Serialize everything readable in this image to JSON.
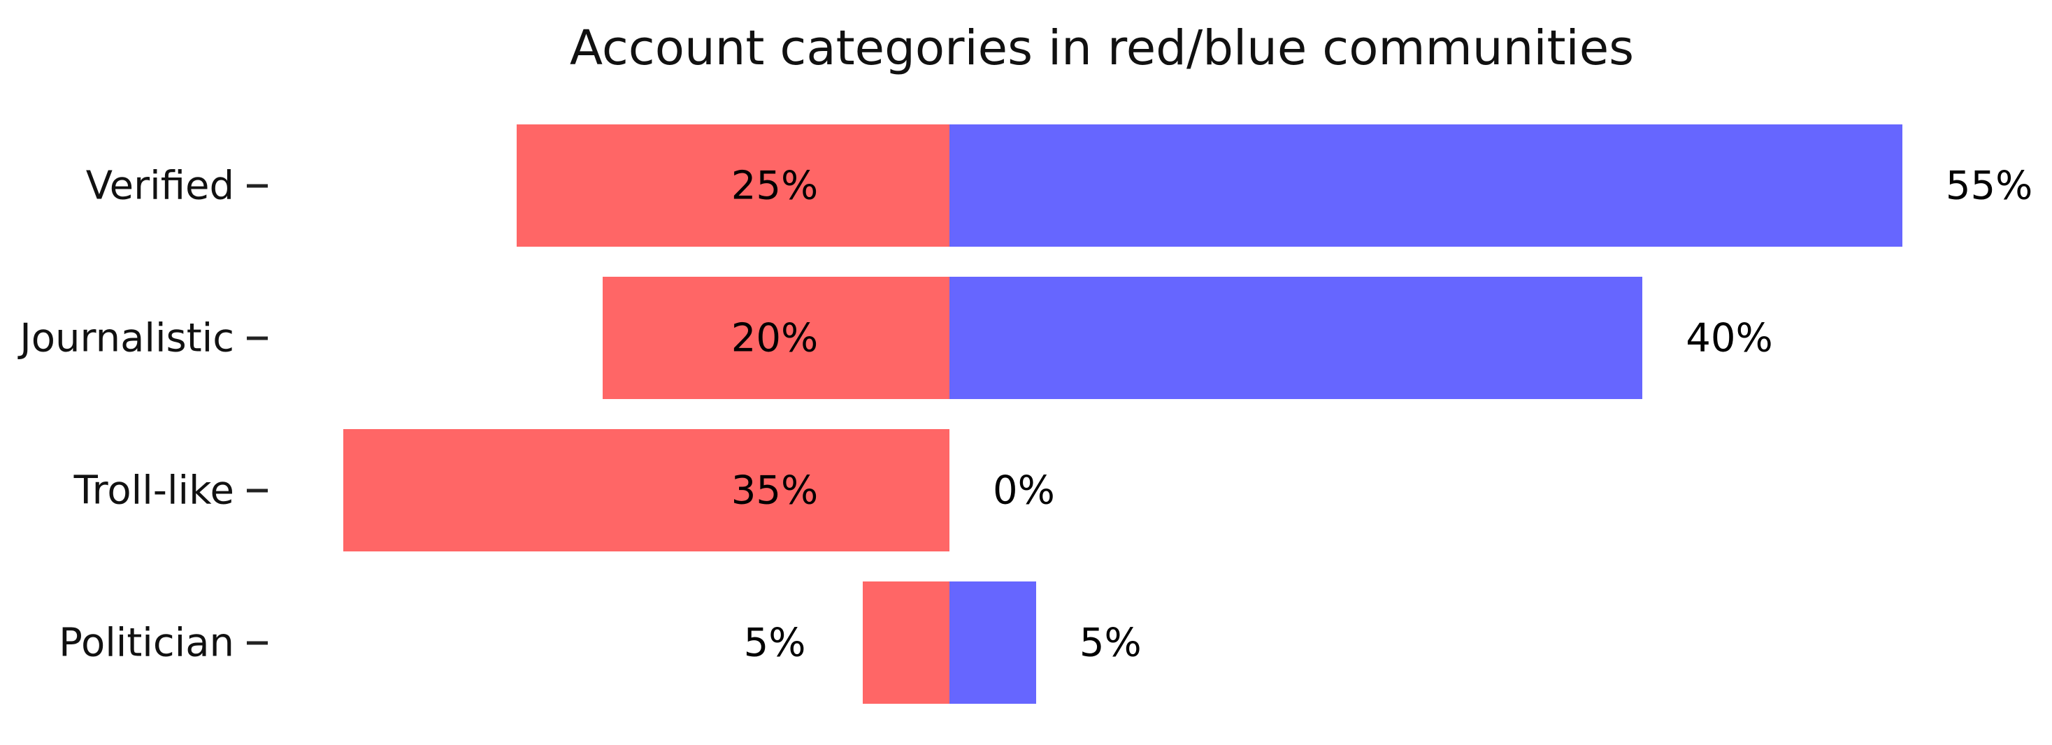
{
  "chart_data": {
    "type": "bar",
    "variant": "diverging-horizontal",
    "title": "Account categories in red/blue communities",
    "categories": [
      "Verified",
      "Journalistic",
      "Troll-like",
      "Politician"
    ],
    "series": [
      {
        "name": "red community",
        "color": "#ff6666",
        "values": [
          25,
          20,
          35,
          5
        ]
      },
      {
        "name": "blue community",
        "color": "#6666ff",
        "values": [
          55,
          40,
          0,
          5
        ]
      }
    ],
    "bar_labels": {
      "red": [
        "25%",
        "20%",
        "35%",
        "5%"
      ],
      "blue": [
        "55%",
        "40%",
        "0%",
        "5%"
      ]
    },
    "value_unit": "%",
    "xlabel": "",
    "ylabel": "",
    "legend": "none",
    "grid": false,
    "background_color": "#ffffff",
    "text_color": "#111111"
  }
}
